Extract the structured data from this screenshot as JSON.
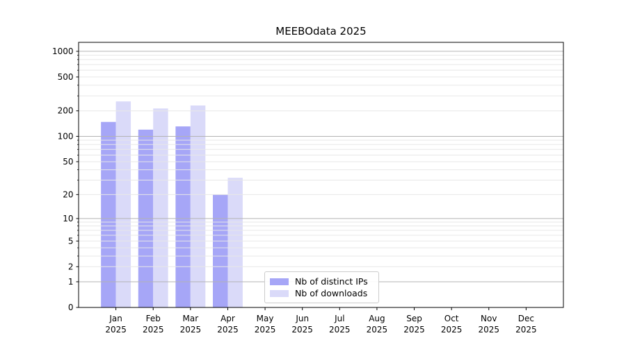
{
  "chart_data": {
    "type": "bar",
    "title": "MEEBOdata 2025",
    "categories": [
      "Jan",
      "Feb",
      "Mar",
      "Apr",
      "May",
      "Jun",
      "Jul",
      "Aug",
      "Sep",
      "Oct",
      "Nov",
      "Dec"
    ],
    "category_sublabel": "2025",
    "series": [
      {
        "name": "Nb of distinct IPs",
        "color": "#a6a6f7",
        "values": [
          148,
          120,
          131,
          20,
          0,
          0,
          0,
          0,
          0,
          0,
          0,
          0
        ]
      },
      {
        "name": "Nb of downloads",
        "color": "#dadaf9",
        "values": [
          258,
          213,
          231,
          32,
          0,
          0,
          0,
          0,
          0,
          0,
          0,
          0
        ]
      }
    ],
    "yscale": "log1p",
    "ylim": [
      0,
      1274
    ],
    "yticks": [
      0,
      1,
      2,
      5,
      10,
      20,
      50,
      100,
      200,
      500,
      1000
    ],
    "grid": {
      "orientation": "horizontal",
      "major_values": [
        1,
        10,
        100,
        1000
      ],
      "major_color": "#b3b3b3",
      "minor_color": "#e7e7e7"
    },
    "legend_position": "lower center"
  },
  "colors": {
    "background": "#ffffff",
    "text": "#000000",
    "spine": "#000000"
  }
}
